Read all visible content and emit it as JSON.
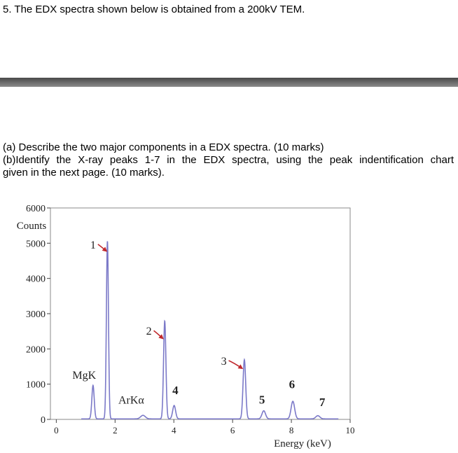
{
  "question": {
    "title": "5. The EDX spectra shown below is obtained from a 200kV TEM.",
    "part_a": "(a) Describe the two major components in a EDX spectra. (10 marks)",
    "part_b_line1": "(b)Identify the X-ray peaks 1-7 in the EDX spectra, using the peak indentification chart",
    "part_b_line2": "given in the next page. (10 marks)."
  },
  "chart_data": {
    "type": "line",
    "xlabel": "Energy (keV)",
    "ylabel": "Counts",
    "xlim": [
      -0.2,
      10
    ],
    "ylim": [
      0,
      6000
    ],
    "x_ticks": [
      0,
      2,
      4,
      6,
      8,
      10
    ],
    "y_ticks": [
      0,
      1000,
      2000,
      3000,
      4000,
      5000,
      6000
    ],
    "grid": false,
    "series_color": "#7b79c8",
    "arrow_color": "#c0282c",
    "peaks": [
      {
        "energy": 1.25,
        "counts": 950,
        "width": 0.04
      },
      {
        "energy": 1.74,
        "counts": 5050,
        "width": 0.035
      },
      {
        "energy": 2.95,
        "counts": 100,
        "width": 0.08
      },
      {
        "energy": 3.69,
        "counts": 2780,
        "width": 0.04
      },
      {
        "energy": 4.01,
        "counts": 380,
        "width": 0.05
      },
      {
        "energy": 6.4,
        "counts": 1680,
        "width": 0.045
      },
      {
        "energy": 7.06,
        "counts": 230,
        "width": 0.06
      },
      {
        "energy": 8.05,
        "counts": 500,
        "width": 0.06
      },
      {
        "energy": 8.9,
        "counts": 90,
        "width": 0.07
      }
    ],
    "labels": [
      {
        "text": "1",
        "energy": 1.25,
        "counts": 4850,
        "arrow_to": [
          1.7,
          4780
        ],
        "bold": false
      },
      {
        "text": "2",
        "energy": 3.15,
        "counts": 2400,
        "arrow_to": [
          3.62,
          2300
        ],
        "bold": false
      },
      {
        "text": "3",
        "energy": 5.7,
        "counts": 1550,
        "arrow_to": [
          6.32,
          1450
        ],
        "bold": false
      },
      {
        "text": "MgK",
        "energy": 0.95,
        "counts": 1150,
        "bold": false
      },
      {
        "text": "ArKα",
        "energy": 2.55,
        "counts": 450,
        "bold": false
      },
      {
        "text": "4",
        "energy": 4.05,
        "counts": 720,
        "bold": true
      },
      {
        "text": "5",
        "energy": 7.0,
        "counts": 450,
        "bold": true
      },
      {
        "text": "6",
        "energy": 8.02,
        "counts": 880,
        "bold": true
      },
      {
        "text": "7",
        "energy": 9.05,
        "counts": 380,
        "bold": true
      }
    ]
  }
}
